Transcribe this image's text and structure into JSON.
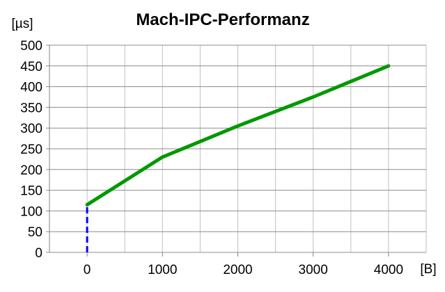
{
  "chart_data": {
    "type": "line",
    "title": "Mach-IPC-Performanz",
    "xlabel": "[B]",
    "ylabel": "[µs]",
    "xlim": [
      -500,
      4500
    ],
    "ylim": [
      0,
      500
    ],
    "x_ticks": [
      0,
      1000,
      2000,
      3000,
      4000
    ],
    "y_ticks": [
      0,
      50,
      100,
      150,
      200,
      250,
      300,
      350,
      400,
      450,
      500
    ],
    "x_grid_step": 500,
    "grid": true,
    "series": [
      {
        "x": [
          0,
          1000,
          2000,
          3000,
          4000
        ],
        "values": [
          115,
          230,
          305,
          375,
          450
        ],
        "color": "#009900",
        "style": "solid"
      },
      {
        "x": [
          0,
          0
        ],
        "values": [
          0,
          115
        ],
        "color": "#0000ff",
        "style": "dashed"
      }
    ]
  }
}
